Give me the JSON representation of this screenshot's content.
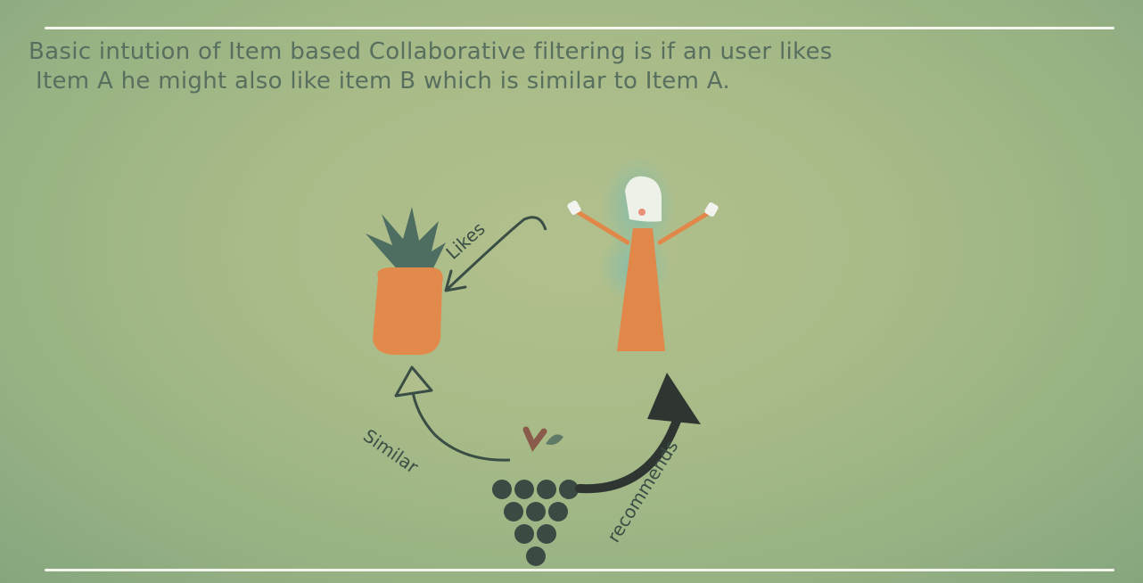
{
  "caption": {
    "line1": "Basic intution of Item based Collaborative filtering is if an user likes",
    "line2": "Item A he might also like item B which is similar to Item A."
  },
  "labels": {
    "likes": "Likes",
    "similar": "Similar",
    "recommends": "recommends"
  },
  "colors": {
    "background": "#a9bb88",
    "text": "#586f5f",
    "pineapple_body": "#e28a4c",
    "pineapple_leaves": "#4d6e61",
    "person_dress": "#e1874a",
    "grapes": "#3c4a44",
    "rule": "#f4f6ee"
  },
  "icons": [
    "pineapple-icon",
    "person-icon",
    "grapes-icon"
  ]
}
